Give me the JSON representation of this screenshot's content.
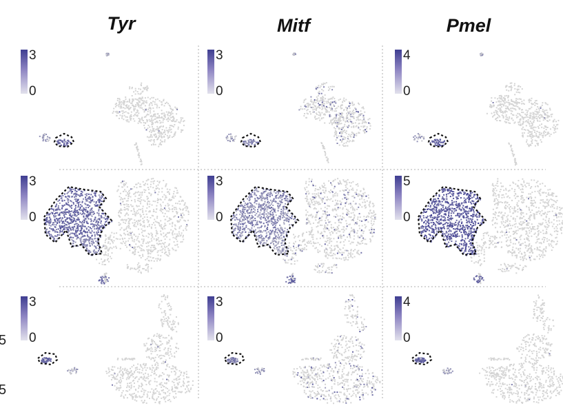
{
  "figure": {
    "edge_labels": [
      "5",
      "5"
    ]
  },
  "chart_data": {
    "type": "scatter",
    "kind": "UMAP feature plots (gene expression per cell)",
    "genes": [
      "Tyr",
      "Mitf",
      "Pmel"
    ],
    "colors": {
      "low": "#d4d4d4",
      "high": "#3f3e91",
      "outline": "#111111",
      "grid": "#c8c8c8"
    },
    "panels": [
      {
        "row": 0,
        "gene": "Tyr",
        "scale_min": 0,
        "scale_max": 3,
        "scale_labels": [
          "3",
          "0"
        ],
        "highlighted_cluster": true
      },
      {
        "row": 0,
        "gene": "Mitf",
        "scale_min": 0,
        "scale_max": 3,
        "scale_labels": [
          "3",
          "0"
        ],
        "highlighted_cluster": true
      },
      {
        "row": 0,
        "gene": "Pmel",
        "scale_min": 0,
        "scale_max": 4,
        "scale_labels": [
          "4",
          "0"
        ],
        "highlighted_cluster": true
      },
      {
        "row": 1,
        "gene": "Tyr",
        "scale_min": 0,
        "scale_max": 3,
        "scale_labels": [
          "3",
          "0"
        ],
        "highlighted_cluster": true
      },
      {
        "row": 1,
        "gene": "Mitf",
        "scale_min": 0,
        "scale_max": 3,
        "scale_labels": [
          "3",
          "0"
        ],
        "highlighted_cluster": true
      },
      {
        "row": 1,
        "gene": "Pmel",
        "scale_min": 0,
        "scale_max": 5,
        "scale_labels": [
          "5",
          "0"
        ],
        "highlighted_cluster": true
      },
      {
        "row": 2,
        "gene": "Tyr",
        "scale_min": 0,
        "scale_max": 3,
        "scale_labels": [
          "3",
          "0"
        ],
        "highlighted_cluster": true
      },
      {
        "row": 2,
        "gene": "Mitf",
        "scale_min": 0,
        "scale_max": 3,
        "scale_labels": [
          "3",
          "0"
        ],
        "highlighted_cluster": true
      },
      {
        "row": 2,
        "gene": "Pmel",
        "scale_min": 0,
        "scale_max": 4,
        "scale_labels": [
          "4",
          "0"
        ],
        "highlighted_cluster": true
      }
    ],
    "grid": true,
    "legend_placement": "top-left of each panel"
  }
}
